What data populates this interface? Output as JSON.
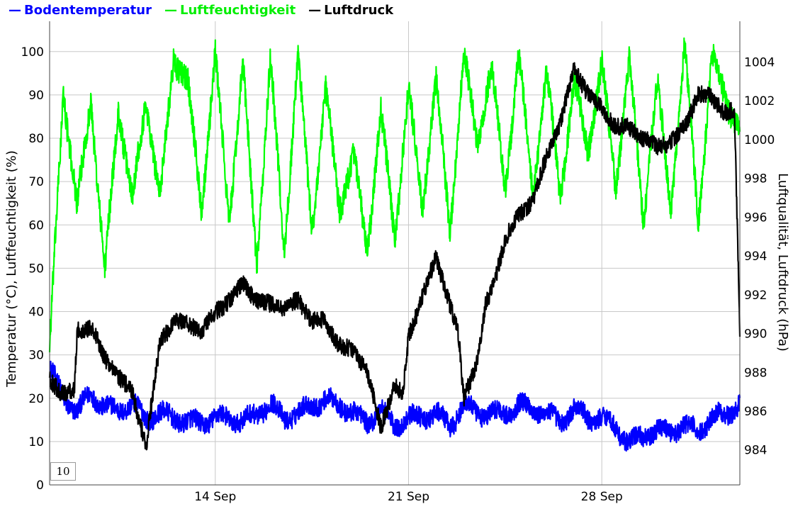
{
  "chart_data": {
    "type": "line",
    "legend_position": "top-left",
    "grid": true,
    "x_axis": {
      "range": [
        "2022-09-08",
        "2022-10-03"
      ],
      "tick_labels": [
        "14 Sep",
        "21 Sep",
        "28 Sep"
      ]
    },
    "y_axis_left": {
      "label": "Temperatur (°C), Luftfeuchtigkeit (%)",
      "range": [
        0,
        107
      ],
      "tick_labels": [
        "0",
        "10",
        "20",
        "30",
        "40",
        "50",
        "60",
        "70",
        "80",
        "90",
        "100"
      ]
    },
    "y_axis_right": {
      "label": "Luftqualität, Luftdruck (hPa)",
      "range": [
        982.2,
        1006.1
      ],
      "tick_labels": [
        "984",
        "986",
        "988",
        "990",
        "992",
        "994",
        "996",
        "998",
        "1000",
        "1002",
        "1004"
      ]
    },
    "series": [
      {
        "name": "Bodentemperatur",
        "color": "#0000ff",
        "axis": "left",
        "x": [
          0.0,
          0.5,
          1.0,
          1.5,
          2.0,
          2.5,
          3.0,
          3.5,
          4.0,
          4.5,
          5.0,
          5.5,
          6.0,
          6.5,
          7.0,
          7.5,
          8.0,
          8.5,
          9.0,
          9.5,
          10.0,
          10.5,
          11.0,
          11.5,
          12.0,
          12.5,
          13.0,
          13.5,
          14.0,
          14.5,
          15.0,
          15.5,
          16.0,
          16.5,
          17.0,
          17.5,
          18.0,
          18.5,
          19.0,
          19.5,
          20.0,
          20.5,
          21.0,
          21.5,
          22.0,
          22.5,
          23.0,
          23.5,
          24.0,
          24.5,
          25.0
        ],
        "y": [
          27,
          20,
          17,
          21,
          18,
          17,
          19,
          15,
          17,
          15,
          15,
          14,
          16,
          15,
          15,
          16,
          19,
          15,
          17,
          18,
          20,
          18,
          17,
          14,
          18,
          13,
          16,
          15,
          17,
          13,
          19,
          16,
          17,
          16,
          19,
          17,
          17,
          14,
          18,
          15,
          16,
          13,
          10,
          11,
          13,
          12,
          14,
          12,
          16,
          16,
          19
        ],
        "values": [
          27,
          20,
          17,
          21,
          18,
          17,
          19,
          15,
          17,
          15,
          15,
          14,
          16,
          15,
          15,
          16,
          19,
          15,
          17,
          18,
          20,
          18,
          17,
          14,
          18,
          13,
          16,
          15,
          17,
          13,
          19,
          16,
          17,
          16,
          19,
          17,
          17,
          14,
          18,
          15,
          16,
          13,
          10,
          11,
          13,
          12,
          14,
          12,
          16,
          16,
          19
        ]
      },
      {
        "name": "Luftfeuchtigkeit",
        "color": "#00ff00",
        "axis": "left",
        "x": [
          0.0,
          0.5,
          1.0,
          1.5,
          2.0,
          2.5,
          3.0,
          3.5,
          4.0,
          4.5,
          5.0,
          5.5,
          6.0,
          6.5,
          7.0,
          7.5,
          8.0,
          8.5,
          9.0,
          9.5,
          10.0,
          10.5,
          11.0,
          11.5,
          12.0,
          12.5,
          13.0,
          13.5,
          14.0,
          14.5,
          15.0,
          15.5,
          16.0,
          16.5,
          17.0,
          17.5,
          18.0,
          18.5,
          19.0,
          19.5,
          20.0,
          20.5,
          21.0,
          21.5,
          22.0,
          22.5,
          23.0,
          23.5,
          24.0,
          24.5,
          25.0
        ],
        "y": [
          30,
          92,
          63,
          90,
          48,
          88,
          65,
          90,
          65,
          100,
          92,
          65,
          98,
          62,
          96,
          52,
          97,
          55,
          98,
          60,
          90,
          65,
          75,
          55,
          85,
          58,
          90,
          65,
          92,
          60,
          98,
          80,
          95,
          70,
          98,
          68,
          94,
          68,
          92,
          78,
          96,
          70,
          97,
          62,
          92,
          65,
          100,
          62,
          98,
          90,
          80
        ],
        "values": [
          30,
          92,
          63,
          90,
          48,
          88,
          65,
          90,
          65,
          100,
          92,
          65,
          98,
          62,
          96,
          52,
          97,
          55,
          98,
          60,
          90,
          65,
          75,
          55,
          85,
          58,
          90,
          65,
          92,
          60,
          98,
          80,
          95,
          70,
          98,
          68,
          94,
          68,
          92,
          78,
          96,
          70,
          97,
          62,
          92,
          65,
          100,
          62,
          98,
          90,
          80
        ]
      },
      {
        "name": "Luftdruck",
        "color": "#000000",
        "axis": "right",
        "x": [
          0.0,
          0.5,
          0.9,
          1.0,
          1.5,
          2.0,
          2.5,
          3.0,
          3.5,
          3.6,
          4.0,
          4.5,
          5.0,
          5.5,
          6.0,
          6.5,
          7.0,
          7.5,
          8.0,
          8.5,
          9.0,
          9.5,
          10.0,
          10.5,
          11.0,
          11.5,
          12.0,
          12.5,
          12.8,
          13.0,
          13.5,
          14.0,
          14.5,
          14.8,
          15.0,
          15.5,
          15.8,
          16.0,
          16.5,
          17.0,
          17.5,
          18.0,
          18.5,
          19.0,
          19.5,
          20.0,
          20.5,
          21.0,
          21.5,
          22.0,
          22.5,
          23.0,
          23.5,
          24.0,
          24.5,
          24.8,
          25.0
        ],
        "y": [
          987.5,
          987.0,
          987.0,
          990.0,
          990.5,
          988.6,
          987.9,
          986.8,
          984.3,
          985.5,
          989.4,
          990.8,
          990.4,
          990.2,
          991.0,
          991.8,
          992.5,
          991.8,
          991.4,
          991.4,
          991.6,
          990.8,
          990.5,
          989.5,
          989.0,
          988.2,
          985.0,
          987.5,
          986.8,
          989.7,
          992.0,
          993.8,
          991.6,
          990.0,
          986.5,
          988.8,
          991.5,
          992.0,
          995.0,
          996.0,
          997.0,
          999.0,
          1001.0,
          1003.5,
          1002.5,
          1001.5,
          1000.8,
          1000.5,
          1000.2,
          999.5,
          1000.0,
          1000.5,
          1002.5,
          1002.0,
          1001.5,
          1001.5,
          990.0
        ],
        "values": [
          987.5,
          987.0,
          987.0,
          990.0,
          990.5,
          988.6,
          987.9,
          986.8,
          984.3,
          985.5,
          989.4,
          990.8,
          990.4,
          990.2,
          991.0,
          991.8,
          992.5,
          991.8,
          991.4,
          991.4,
          991.6,
          990.8,
          990.5,
          989.5,
          989.0,
          988.2,
          985.0,
          987.5,
          986.8,
          989.7,
          992.0,
          993.8,
          991.6,
          990.0,
          986.5,
          988.8,
          991.5,
          992.0,
          995.0,
          996.0,
          997.0,
          999.0,
          1001.0,
          1003.5,
          1002.5,
          1001.5,
          1000.8,
          1000.5,
          1000.2,
          999.5,
          1000.0,
          1000.5,
          1002.5,
          1002.0,
          1001.5,
          1001.5,
          990.0
        ]
      }
    ]
  },
  "badge": "10"
}
